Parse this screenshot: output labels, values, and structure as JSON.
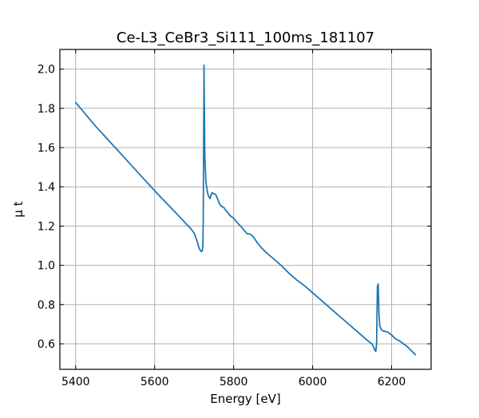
{
  "chart_data": {
    "type": "line",
    "title": "Ce-L3_CeBr3_Si111_100ms_181107",
    "xlabel": "Energy [eV]",
    "ylabel": "μ t",
    "xlim": [
      5360,
      6300
    ],
    "ylim": [
      0.47,
      2.1
    ],
    "xticks": [
      5400,
      5600,
      5800,
      6000,
      6200
    ],
    "yticks": [
      0.6,
      0.8,
      1.0,
      1.2,
      1.4,
      1.6,
      1.8,
      2.0
    ],
    "xtick_labels": [
      "5400",
      "5600",
      "5800",
      "6000",
      "6200"
    ],
    "ytick_labels": [
      "0.6",
      "0.8",
      "1.0",
      "1.2",
      "1.4",
      "1.6",
      "1.8",
      "2.0"
    ],
    "grid": true,
    "ticks_direction": "in",
    "series": [
      {
        "color": "#1f77b4",
        "x": [
          5400,
          5450,
          5500,
          5550,
          5600,
          5650,
          5690,
          5700,
          5708,
          5712,
          5716,
          5719,
          5721,
          5722,
          5723,
          5724,
          5725,
          5727,
          5730,
          5735,
          5740,
          5745,
          5750,
          5755,
          5760,
          5765,
          5770,
          5775,
          5780,
          5785,
          5790,
          5800,
          5810,
          5820,
          5830,
          5835,
          5840,
          5845,
          5850,
          5860,
          5870,
          5880,
          5900,
          5920,
          5940,
          5960,
          5980,
          6000,
          6020,
          6040,
          6060,
          6080,
          6100,
          6120,
          6140,
          6150,
          6153,
          6156,
          6158,
          6160,
          6162,
          6164,
          6166,
          6168,
          6170,
          6175,
          6180,
          6190,
          6200,
          6210,
          6220,
          6230,
          6240,
          6250,
          6260
        ],
        "y": [
          1.83,
          1.71,
          1.6,
          1.49,
          1.38,
          1.275,
          1.19,
          1.165,
          1.12,
          1.09,
          1.075,
          1.07,
          1.08,
          1.1,
          1.22,
          1.6,
          2.02,
          1.55,
          1.42,
          1.36,
          1.34,
          1.37,
          1.365,
          1.36,
          1.335,
          1.31,
          1.3,
          1.295,
          1.28,
          1.27,
          1.255,
          1.24,
          1.215,
          1.195,
          1.17,
          1.16,
          1.16,
          1.155,
          1.145,
          1.115,
          1.09,
          1.07,
          1.035,
          1.0,
          0.96,
          0.925,
          0.895,
          0.86,
          0.825,
          0.79,
          0.755,
          0.72,
          0.685,
          0.65,
          0.615,
          0.6,
          0.59,
          0.575,
          0.565,
          0.562,
          0.6,
          0.89,
          0.905,
          0.75,
          0.69,
          0.67,
          0.665,
          0.66,
          0.645,
          0.625,
          0.615,
          0.6,
          0.585,
          0.565,
          0.545
        ]
      }
    ]
  }
}
